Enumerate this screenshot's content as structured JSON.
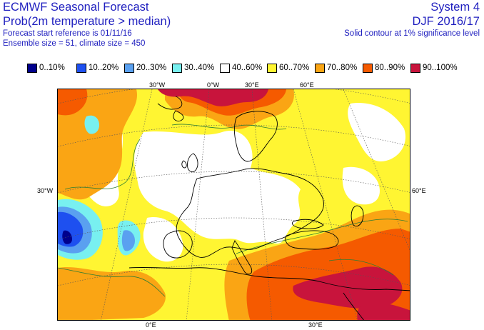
{
  "header": {
    "title": "ECMWF Seasonal Forecast",
    "subtitle": "Prob(2m temperature > median)",
    "forecast_ref": "Forecast start reference is 01/11/16",
    "ensemble": "Ensemble size = 51, climate size = 450",
    "system": "System 4",
    "period": "DJF 2016/17",
    "contour_note": "Solid contour at 1% significance level"
  },
  "legend": [
    {
      "label": "0..10%",
      "color": "#00008c"
    },
    {
      "label": "10..20%",
      "color": "#1e50f0"
    },
    {
      "label": "20..30%",
      "color": "#5aa0f0"
    },
    {
      "label": "30..40%",
      "color": "#78f0f0"
    },
    {
      "label": "40..60%",
      "color": "#ffffff"
    },
    {
      "label": "60..70%",
      "color": "#fff532"
    },
    {
      "label": "70..80%",
      "color": "#faa514"
    },
    {
      "label": "80..90%",
      "color": "#f55a00"
    },
    {
      "label": "90..100%",
      "color": "#c8143c"
    }
  ],
  "map": {
    "lon_labels_top": [
      "30°W",
      "0°W",
      "30°E",
      "60°E"
    ],
    "lon_labels_bottom": [
      "0°E",
      "30°E"
    ],
    "lat_label_left": "30°W",
    "lat_label_right": "60°E"
  }
}
